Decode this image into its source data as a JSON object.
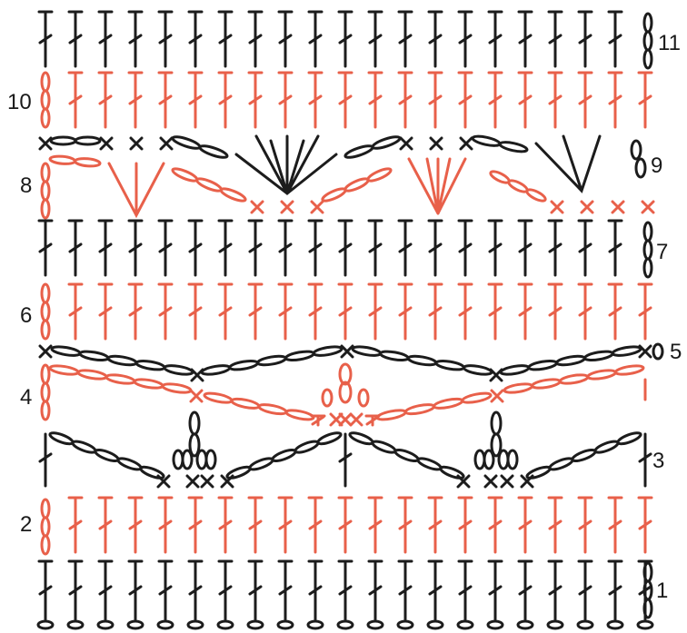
{
  "diagram": {
    "type": "crochet-stitch-chart",
    "colors": {
      "odd_rows": "#1c1c1c",
      "even_rows": "#e8604a"
    },
    "row_labels": [
      "1",
      "2",
      "3",
      "4",
      "5",
      "6",
      "7",
      "8",
      "9",
      "10",
      "11"
    ],
    "stitch_columns": 21
  }
}
